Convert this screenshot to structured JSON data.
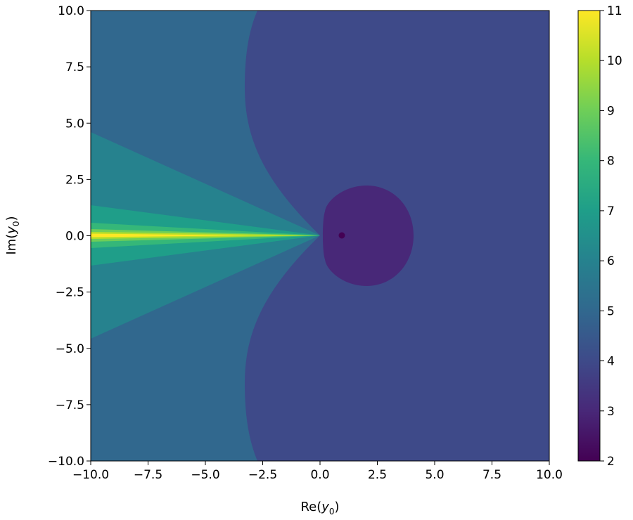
{
  "chart_data": {
    "type": "contourf",
    "title": "",
    "xlabel": {
      "main": "Re(",
      "var": "y",
      "sub": "0",
      "close": ")"
    },
    "ylabel": {
      "main": "Im(",
      "var": "y",
      "sub": "0",
      "close": ")"
    },
    "xlim": [
      -10,
      10
    ],
    "ylim": [
      -10,
      10
    ],
    "x_ticks": [
      -10,
      -7.5,
      -5,
      -2.5,
      0,
      2.5,
      5,
      7.5,
      10
    ],
    "x_tick_labels": [
      "−10.0",
      "−7.5",
      "−5.0",
      "−2.5",
      "0.0",
      "2.5",
      "5.0",
      "7.5",
      "10.0"
    ],
    "y_ticks": [
      10,
      7.5,
      5,
      2.5,
      0,
      -2.5,
      -5,
      -7.5,
      -10
    ],
    "y_tick_labels": [
      "10.0",
      "7.5",
      "5.0",
      "2.5",
      "0.0",
      "−2.5",
      "−5.0",
      "−7.5",
      "−10.0"
    ],
    "grid": false,
    "colormap": "viridis",
    "colorbar": {
      "range": [
        2,
        11
      ],
      "ticks": [
        2,
        3,
        4,
        5,
        6,
        7,
        8,
        9,
        10,
        11
      ],
      "tick_labels": [
        "2",
        "3",
        "4",
        "5",
        "6",
        "7",
        "8",
        "9",
        "10",
        "11"
      ]
    },
    "regions": [
      {
        "level": 4,
        "color": "#3e4a89",
        "description": "right half-plane background"
      },
      {
        "level": 5,
        "color": "#31688e",
        "description": "left outer region"
      },
      {
        "level": 6,
        "color": "#26828e",
        "description": "wedge along negative real axis"
      },
      {
        "level": 7,
        "color": "#1f9e89",
        "description": "narrower wedge"
      },
      {
        "level": 8,
        "color": "#35b779",
        "description": "narrow wedge"
      },
      {
        "level": 9,
        "color": "#6ece58",
        "description": "thin wedge"
      },
      {
        "level": 10,
        "color": "#b5de2b",
        "description": "very thin wedge"
      },
      {
        "level": 10.5,
        "color": "#fde725",
        "description": "core of negative real axis"
      },
      {
        "level": 3,
        "color": "#482878",
        "description": "disk centered near (2, 0)"
      },
      {
        "level": 2,
        "color": "#440154",
        "description": "point near (1, 0)"
      }
    ],
    "colors": {
      "c2": "#440154",
      "c3": "#482878",
      "c4": "#3e4a89",
      "c5": "#31688e",
      "c6": "#26828e",
      "c7": "#1f9e89",
      "c8": "#35b779",
      "c9": "#6ece58",
      "c10": "#b5de2b",
      "c11": "#fde725"
    }
  }
}
